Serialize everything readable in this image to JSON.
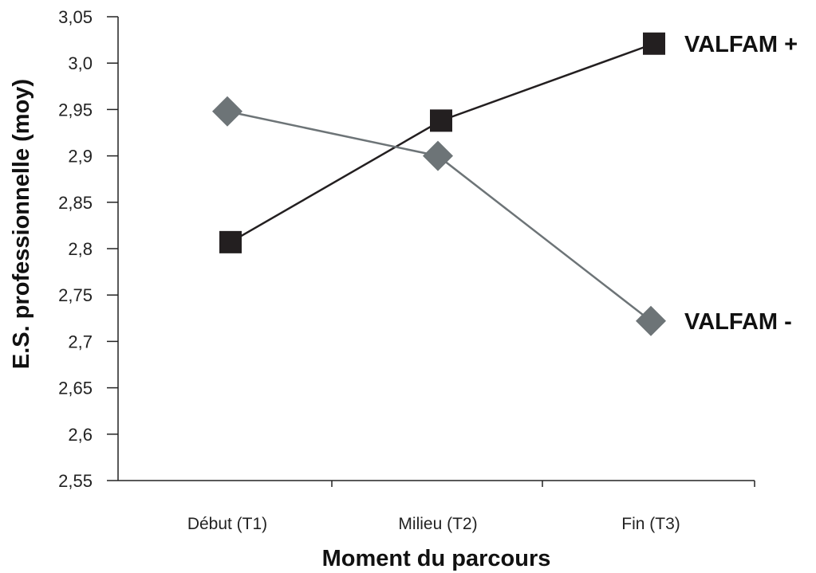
{
  "chart_data": {
    "type": "line",
    "ylabel": "E.S. professionnelle (moy)",
    "xlabel": "Moment du parcours",
    "categories": [
      "Début (T1)",
      "Milieu (T2)",
      "Fin (T3)"
    ],
    "ylim": [
      2.55,
      3.05
    ],
    "ytick_labels": [
      "3,05",
      "3,0",
      "2,95",
      "2,9",
      "2,85",
      "2,8",
      "2,75",
      "2,7",
      "2,65",
      "2,6",
      "2,55"
    ],
    "yticks": [
      3.05,
      3.0,
      2.95,
      2.9,
      2.85,
      2.8,
      2.75,
      2.7,
      2.65,
      2.6,
      2.55
    ],
    "grid": false,
    "series": [
      {
        "name": "VALFAM +",
        "values": [
          2.807,
          2.938,
          3.021
        ],
        "color": "#231f20",
        "marker": "square"
      },
      {
        "name": "VALFAM -",
        "values": [
          2.948,
          2.9,
          2.722
        ],
        "color": "#6d7477",
        "marker": "diamond"
      }
    ]
  }
}
